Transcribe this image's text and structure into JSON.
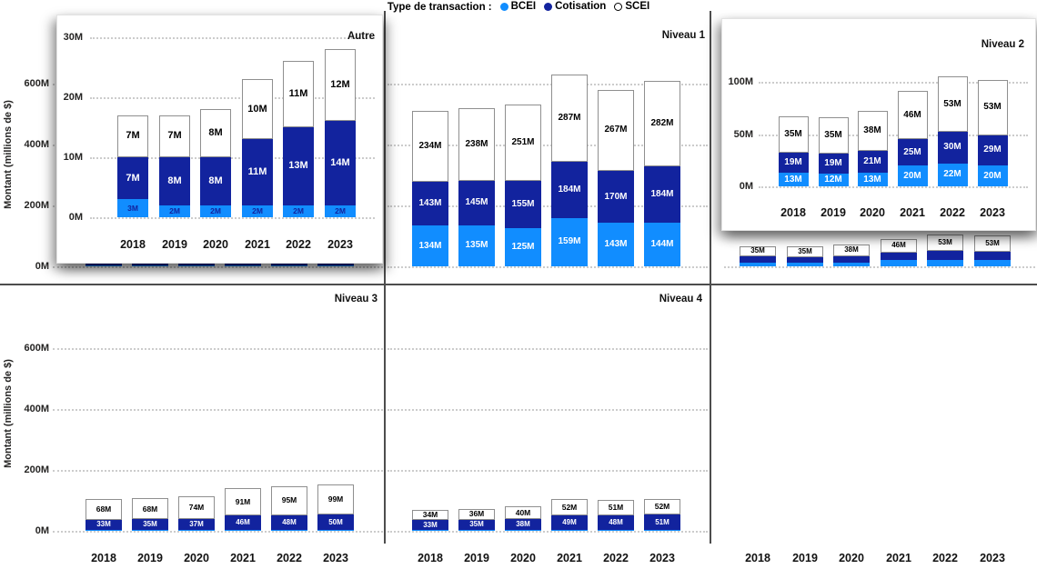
{
  "legend": {
    "title": "Type de transaction :",
    "items": [
      {
        "label": "BCEI",
        "color": "#118DFF",
        "filled": true
      },
      {
        "label": "Cotisation",
        "color": "#12239E",
        "filled": true
      },
      {
        "label": "SCEI",
        "color": "#FFFFFF",
        "filled": false,
        "border": "#000000"
      }
    ]
  },
  "y_axis": {
    "title": "Montant (millions de $)",
    "ticks": [
      "0M",
      "200M",
      "400M",
      "600M"
    ]
  },
  "x_axis": {
    "years": [
      "2018",
      "2019",
      "2020",
      "2021",
      "2022",
      "2023"
    ]
  },
  "colors": {
    "bcei": "#118DFF",
    "cotisation": "#12239E",
    "scei_fill": "#FFFFFF",
    "scei_border": "#8F8F8F",
    "grid": "#CCCCCC",
    "divider": "#4D4D4D",
    "text": "#252423"
  },
  "chart_data": {
    "type": "bar",
    "stacked": true,
    "categories": [
      "2018",
      "2019",
      "2020",
      "2021",
      "2022",
      "2023"
    ],
    "series_names": [
      "BCEI",
      "Cotisation",
      "SCEI"
    ],
    "unit": "M (millions de $)",
    "main_axis": {
      "ticks": [
        "0M",
        "200M",
        "400M",
        "600M"
      ],
      "max": 700
    },
    "facets": [
      {
        "name": "Autre",
        "axis_ticks": [
          "0M",
          "10M",
          "20M",
          "30M"
        ],
        "series": [
          {
            "name": "BCEI",
            "values": [
              3,
              2,
              2,
              2,
              2,
              2
            ]
          },
          {
            "name": "Cotisation",
            "values": [
              7,
              8,
              8,
              11,
              13,
              14
            ]
          },
          {
            "name": "SCEI",
            "values": [
              7,
              7,
              8,
              10,
              11,
              12
            ]
          }
        ]
      },
      {
        "name": "Niveau 1",
        "series": [
          {
            "name": "BCEI",
            "values": [
              134,
              135,
              125,
              159,
              143,
              144
            ]
          },
          {
            "name": "Cotisation",
            "values": [
              143,
              145,
              155,
              184,
              170,
              184
            ]
          },
          {
            "name": "SCEI",
            "values": [
              234,
              238,
              251,
              287,
              267,
              282
            ]
          }
        ]
      },
      {
        "name": "Niveau 2",
        "axis_ticks": [
          "0M",
          "50M",
          "100M"
        ],
        "series": [
          {
            "name": "BCEI",
            "values": [
              13,
              12,
              13,
              20,
              22,
              20
            ]
          },
          {
            "name": "Cotisation",
            "values": [
              19,
              19,
              21,
              25,
              30,
              29
            ]
          },
          {
            "name": "SCEI",
            "values": [
              35,
              35,
              38,
              46,
              53,
              53
            ]
          }
        ]
      },
      {
        "name": "Niveau 3",
        "bcei_estimated": true,
        "series": [
          {
            "name": "BCEI",
            "values": [
              3,
              3,
              3,
              4,
              4,
              3
            ],
            "labeled": false
          },
          {
            "name": "Cotisation",
            "values": [
              33,
              35,
              37,
              46,
              48,
              50
            ]
          },
          {
            "name": "SCEI",
            "values": [
              68,
              68,
              74,
              91,
              95,
              99
            ]
          }
        ]
      },
      {
        "name": "Niveau 4",
        "bcei_estimated": true,
        "series": [
          {
            "name": "BCEI",
            "values": [
              2,
              2,
              2,
              2,
              2,
              2
            ],
            "labeled": false
          },
          {
            "name": "Cotisation",
            "values": [
              33,
              35,
              38,
              49,
              48,
              51
            ]
          },
          {
            "name": "SCEI",
            "values": [
              34,
              36,
              40,
              52,
              51,
              52
            ]
          }
        ]
      }
    ]
  }
}
